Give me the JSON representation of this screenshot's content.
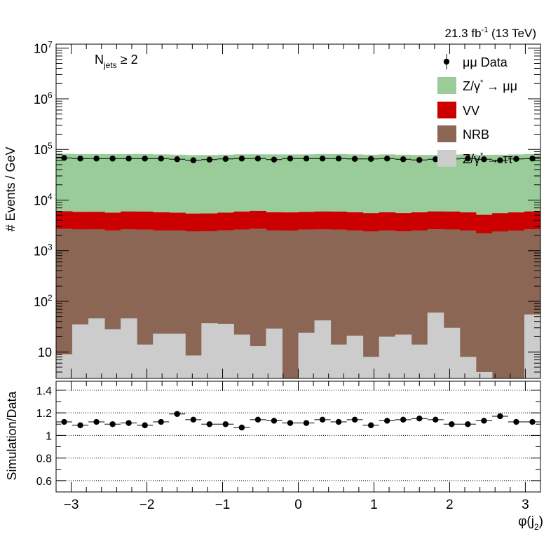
{
  "lumi_label": "21.3 fb",
  "lumi_sup": "-1",
  "lumi_energy": "(13 TeV)",
  "selection": {
    "main": "N",
    "sub": "jets",
    "rest": " ≥ 2"
  },
  "ylabel_top": "# Events / GeV",
  "ylabel_bottom": "Simulation/Data",
  "xlabel": {
    "main": "φ(j",
    "sub": "2",
    "close": ")"
  },
  "legend": [
    {
      "label": "μμ Data",
      "type": "marker",
      "color": "#000000"
    },
    {
      "label": "Z/γ",
      "sup": "*",
      "rest": " → μμ",
      "type": "box",
      "color": "#99cc99"
    },
    {
      "label": "VV",
      "type": "box",
      "color": "#cc0000"
    },
    {
      "label": "NRB",
      "type": "box",
      "color": "#8b6655"
    },
    {
      "label": "Z/γ",
      "sup": "*",
      "rest": " → ττ",
      "type": "box",
      "color": "#cccccc"
    }
  ],
  "top_yticks": [
    {
      "value": 10,
      "label": "10",
      "sup": ""
    },
    {
      "value": 100,
      "label": "10",
      "sup": "2"
    },
    {
      "value": 1000,
      "label": "10",
      "sup": "3"
    },
    {
      "value": 10000,
      "label": "10",
      "sup": "4"
    },
    {
      "value": 100000,
      "label": "10",
      "sup": "5"
    },
    {
      "value": 1000000,
      "label": "10",
      "sup": "6"
    },
    {
      "value": 10000000,
      "label": "10",
      "sup": "7"
    }
  ],
  "bottom_yticks": [
    {
      "value": 0.6,
      "label": "0.6"
    },
    {
      "value": 0.8,
      "label": "0.8"
    },
    {
      "value": 1.0,
      "label": "1"
    },
    {
      "value": 1.2,
      "label": "1.2"
    },
    {
      "value": 1.4,
      "label": "1.4"
    }
  ],
  "xticks": [
    {
      "value": -3,
      "label": "−3"
    },
    {
      "value": -2,
      "label": "−2"
    },
    {
      "value": -1,
      "label": "−1"
    },
    {
      "value": 0,
      "label": "0"
    },
    {
      "value": 1,
      "label": "1"
    },
    {
      "value": 2,
      "label": "2"
    },
    {
      "value": 3,
      "label": "3"
    }
  ],
  "chart_data": [
    {
      "type": "bar",
      "stacked": true,
      "yscale": "log",
      "ylim": [
        3,
        12000000
      ],
      "xlim": [
        -3.2,
        3.2
      ],
      "ylabel": "# Events / GeV",
      "bins": 30,
      "colors": {
        "Z/γ* → μμ": "#99cc99",
        "VV": "#cc0000",
        "NRB": "#8b6655",
        "Z/γ* → ττ": "#cccccc",
        "μμ Data": "#000000"
      },
      "series": [
        {
          "name": "Z/γ* → ττ",
          "values": [
            9,
            35,
            46,
            28,
            46,
            14,
            23,
            23,
            8.5,
            37,
            36,
            22,
            13,
            29,
            0,
            24,
            42,
            14,
            21,
            8,
            20,
            22,
            14,
            60,
            30,
            8,
            4,
            0,
            0,
            55
          ]
        },
        {
          "name": "NRB",
          "values": [
            2700,
            2600,
            2600,
            2500,
            2600,
            2600,
            2500,
            2500,
            2400,
            2400,
            2500,
            2600,
            2700,
            2500,
            2500,
            2600,
            2600,
            2600,
            2500,
            2400,
            2500,
            2400,
            2500,
            2600,
            2600,
            2500,
            2200,
            2400,
            2500,
            2600
          ]
        },
        {
          "name": "VV",
          "values": [
            3300,
            3200,
            3200,
            3100,
            3300,
            3300,
            3200,
            3100,
            3000,
            3000,
            3100,
            3300,
            3400,
            3200,
            3200,
            3200,
            3300,
            3300,
            3200,
            3100,
            3200,
            3100,
            3200,
            3300,
            3300,
            3200,
            2900,
            3100,
            3200,
            3300
          ]
        },
        {
          "name": "Z/γ* → μμ",
          "values": [
            76000,
            75000,
            75000,
            75000,
            75000,
            75000,
            74000,
            73000,
            72000,
            72000,
            73000,
            74000,
            74000,
            74000,
            74000,
            74000,
            75000,
            75000,
            74000,
            73000,
            74000,
            73000,
            72000,
            72000,
            73000,
            74000,
            73000,
            73000,
            74000,
            75000
          ]
        },
        {
          "name": "μμ Data",
          "type": "points",
          "values": [
            68000,
            66000,
            66000,
            66000,
            66000,
            66000,
            66000,
            64000,
            61000,
            63000,
            65000,
            66000,
            66000,
            63000,
            66000,
            66000,
            66000,
            66000,
            65000,
            65000,
            66000,
            64000,
            62000,
            64000,
            65000,
            66000,
            64000,
            61000,
            65000,
            66000
          ]
        }
      ]
    },
    {
      "type": "scatter",
      "ylabel": "Simulation/Data",
      "xlabel": "φ(j2)",
      "ylim": [
        0.5,
        1.48
      ],
      "xlim": [
        -3.2,
        3.2
      ],
      "gridlines": [
        0.6,
        0.8,
        1.0,
        1.2,
        1.4
      ],
      "series": [
        {
          "name": "Simulation/Data",
          "values": [
            1.12,
            1.09,
            1.12,
            1.1,
            1.11,
            1.09,
            1.12,
            1.19,
            1.14,
            1.1,
            1.1,
            1.07,
            1.14,
            1.13,
            1.11,
            1.11,
            1.14,
            1.12,
            1.14,
            1.09,
            1.13,
            1.14,
            1.15,
            1.14,
            1.1,
            1.1,
            1.13,
            1.17,
            1.12,
            1.12
          ]
        }
      ]
    }
  ]
}
